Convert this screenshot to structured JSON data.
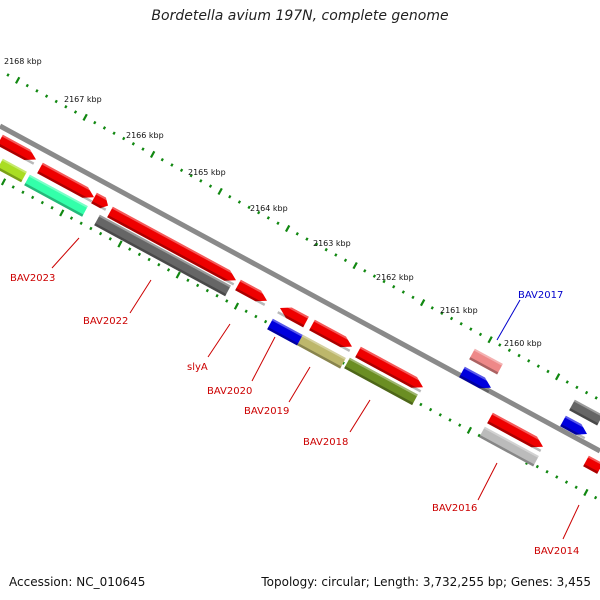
{
  "header": {
    "title": "Bordetella avium 197N, complete genome"
  },
  "footer": {
    "accession": "Accession: NC_010645",
    "stats": "Topology: circular; Length: 3,732,255 bp; Genes: 3,455"
  },
  "scale": {
    "tick_color": "#118811",
    "ticks": [
      "2168 kbp",
      "2167 kbp",
      "2166 kbp",
      "2165 kbp",
      "2164 kbp",
      "2163 kbp",
      "2162 kbp",
      "2161 kbp",
      "2160 kbp"
    ]
  },
  "gene_labels": {
    "BAV2023": "BAV2023",
    "BAV2022": "BAV2022",
    "slyA": "slyA",
    "BAV2020": "BAV2020",
    "BAV2019": "BAV2019",
    "BAV2018": "BAV2018",
    "BAV2017": "BAV2017",
    "BAV2016": "BAV2016",
    "BAV2014": "BAV2014"
  },
  "colors": {
    "red_label": "#cc0000",
    "blue_label": "#0000cc",
    "backbone": "#888888",
    "feature_red": "#ee0000",
    "feature_blue": "#0000dd",
    "feature_dark_gray": "#666666",
    "feature_light_gray": "#bbbbbb",
    "feature_olive": "#6b8e23",
    "feature_khaki": "#bdb76b",
    "feature_aqua": "#33ffaa",
    "feature_lime": "#aadd22",
    "feature_pink": "#ee8888"
  }
}
